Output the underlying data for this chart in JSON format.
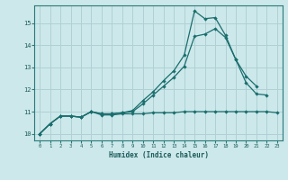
{
  "xlabel": "Humidex (Indice chaleur)",
  "xlim": [
    -0.5,
    23.5
  ],
  "ylim": [
    9.7,
    15.8
  ],
  "bg_color": "#cce8ea",
  "grid_color": "#b0d0d4",
  "line_color": "#1a6e6e",
  "spine_color": "#2a7a7a",
  "x_ticks": [
    0,
    1,
    2,
    3,
    4,
    5,
    6,
    7,
    8,
    9,
    10,
    11,
    12,
    13,
    14,
    15,
    16,
    17,
    18,
    19,
    20,
    21,
    22,
    23
  ],
  "y_ticks": [
    10,
    11,
    12,
    13,
    14,
    15
  ],
  "series1_x": [
    0,
    1,
    2,
    3,
    4,
    5,
    6,
    7,
    8,
    9,
    10,
    11,
    12,
    13,
    14,
    15,
    16,
    17,
    18,
    19,
    20,
    21,
    22,
    23
  ],
  "series1_y": [
    10.0,
    10.45,
    10.8,
    10.8,
    10.75,
    11.0,
    10.85,
    10.85,
    10.9,
    10.9,
    10.9,
    10.95,
    10.95,
    10.95,
    11.0,
    11.0,
    11.0,
    11.0,
    11.0,
    11.0,
    11.0,
    11.0,
    11.0,
    10.95
  ],
  "series2_x": [
    0,
    1,
    2,
    3,
    4,
    5,
    6,
    7,
    8,
    9,
    10,
    11,
    12,
    13,
    14,
    15,
    16,
    17,
    18,
    19,
    20,
    21,
    22,
    23
  ],
  "series2_y": [
    10.0,
    10.45,
    10.8,
    10.8,
    10.75,
    11.0,
    10.9,
    10.9,
    10.95,
    11.0,
    11.35,
    11.75,
    12.15,
    12.55,
    13.05,
    14.4,
    14.5,
    14.75,
    14.35,
    13.35,
    12.6,
    12.15,
    null,
    null
  ],
  "series3_x": [
    0,
    1,
    2,
    3,
    4,
    5,
    6,
    7,
    8,
    9,
    10,
    11,
    12,
    13,
    14,
    15,
    16,
    17,
    18,
    19,
    20,
    21,
    22
  ],
  "series3_y": [
    10.0,
    10.45,
    10.8,
    10.8,
    10.75,
    11.0,
    10.9,
    10.9,
    10.95,
    11.05,
    11.5,
    11.9,
    12.4,
    12.85,
    13.55,
    15.55,
    15.2,
    15.25,
    14.45,
    13.35,
    12.3,
    11.8,
    11.75
  ]
}
